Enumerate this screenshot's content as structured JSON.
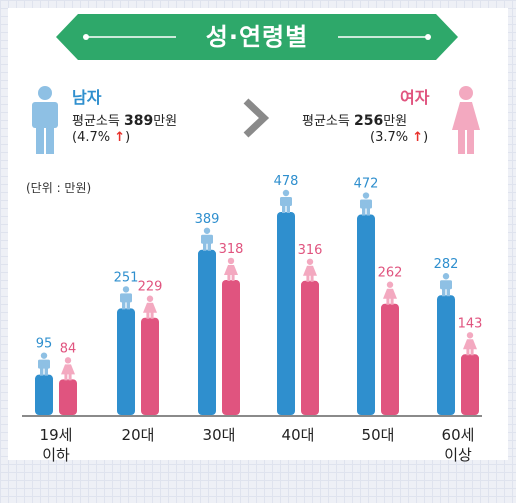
{
  "banner": {
    "title": "성·연령별"
  },
  "male": {
    "name": "남자",
    "income_label": "평균소득",
    "income_value": "389",
    "income_unit": "만원",
    "change": "(4.7%",
    "change_close": ")"
  },
  "female": {
    "name": "여자",
    "income_label": "평균소득",
    "income_value": "256",
    "income_unit": "만원",
    "change": "(3.7%",
    "change_close": ")"
  },
  "unit_label": "(단위 : 만원)",
  "colors": {
    "male": "#2f8fce",
    "female": "#e0547f",
    "male_icon": "#8ec0e4",
    "female_icon": "#f3a9c0",
    "banner": "#2ea86a",
    "up_arrow": "#e8302a"
  },
  "chart_data": {
    "type": "bar",
    "categories": [
      "19세\n이하",
      "20대",
      "30대",
      "40대",
      "50대",
      "60세\n이상"
    ],
    "series": [
      {
        "name": "남자",
        "values": [
          95,
          251,
          389,
          478,
          472,
          282
        ]
      },
      {
        "name": "여자",
        "values": [
          84,
          229,
          318,
          316,
          262,
          143
        ]
      }
    ],
    "ylabel": "(단위 : 만원)",
    "ylim": [
      0,
      500
    ],
    "grid": false,
    "legend": "top"
  }
}
